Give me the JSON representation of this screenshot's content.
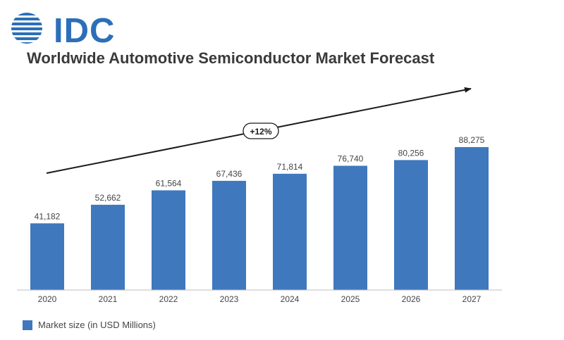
{
  "logo": {
    "text": "IDC",
    "color": "#2c6fb8"
  },
  "chart_data": {
    "type": "bar",
    "title": "Worldwide Automotive Semiconductor Market Forecast",
    "categories": [
      "2020",
      "2021",
      "2022",
      "2023",
      "2024",
      "2025",
      "2026",
      "2027"
    ],
    "series": [
      {
        "name": "Market size (in USD Millions)",
        "values": [
          41182,
          52662,
          61564,
          67436,
          71814,
          76740,
          80256,
          88275
        ],
        "labels": [
          "41,182",
          "52,662",
          "61,564",
          "67,436",
          "71,814",
          "76,740",
          "80,256",
          "88,275"
        ],
        "color": "#3f78bd"
      }
    ],
    "ylim": [
      0,
      100000
    ],
    "grid": false,
    "legend": "bottom-left",
    "annotation": "+12%"
  }
}
